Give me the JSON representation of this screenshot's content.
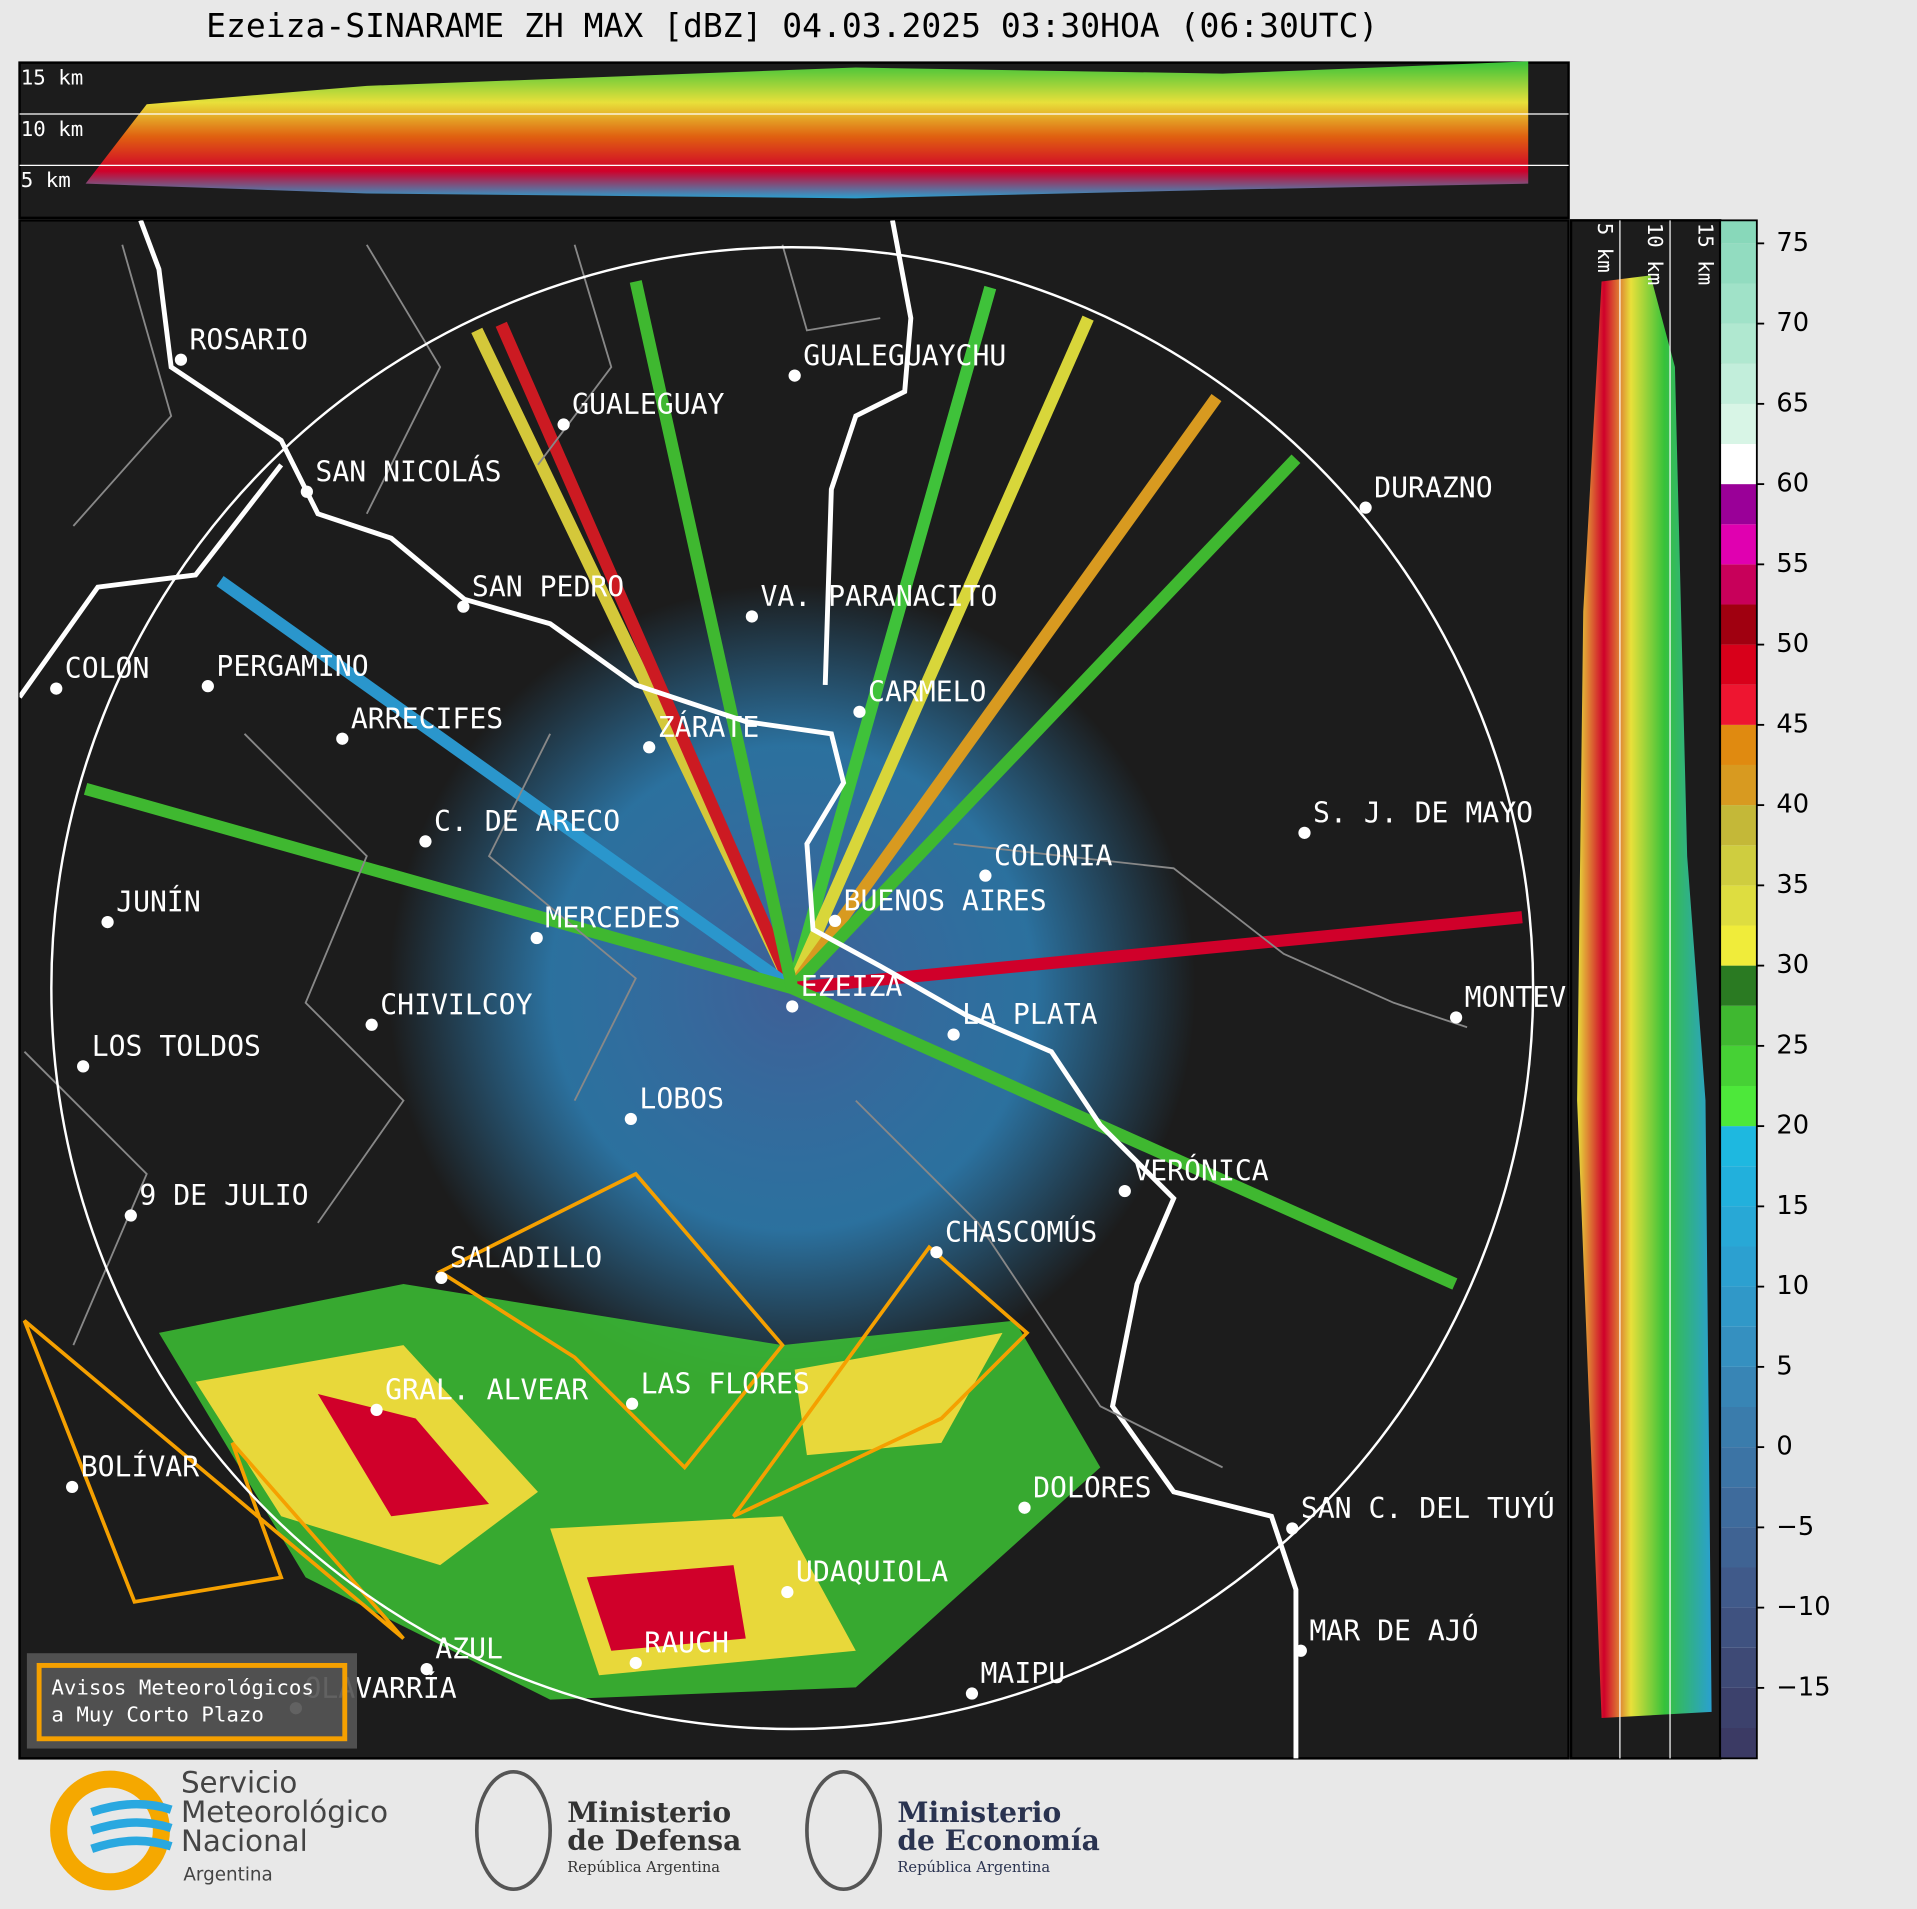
{
  "header": {
    "title": "Ezeiza-SINARAME ZH MAX [dBZ] 04.03.2025 03:30HOA (06:30UTC)"
  },
  "top_panel": {
    "labels": [
      "15 km",
      "10 km",
      "5 km"
    ]
  },
  "side_panel": {
    "labels": [
      "5 km",
      "10 km",
      "15 km"
    ]
  },
  "cities": [
    "ROSARIO",
    "GUALEGUAYCHU",
    "GUALEGUAY",
    "SAN NICOLÁS",
    "DURAZNO",
    "SAN PEDRO",
    "VA. PARANACITO",
    "COLON",
    "PERGAMINO",
    "CARMELO",
    "ARRECIFES",
    "ZÁRATE",
    "C. DE ARECO",
    "S. J. DE MAYO",
    "COLONIA",
    "JUNÍN",
    "BUENOS AIRES",
    "MERCEDES",
    "EZEIZA",
    "MONTEVIDEO",
    "CHIVILCOY",
    "LA PLATA",
    "LOS TOLDOS",
    "LOBOS",
    "VERÓNICA",
    "9 DE JULIO",
    "CHASCOMÚS",
    "SALADILLO",
    "GRAL. ALVEAR",
    "LAS FLORES",
    "BOLÍVAR",
    "DOLORES",
    "SAN C. DEL TUYÚ",
    "UDAQUIOLA",
    "MAR DE AJÓ",
    "AZUL",
    "RAUCH",
    "OLAVARRÍA",
    "MAIPU"
  ],
  "legend": {
    "lines": [
      "Avisos Meteorológicos",
      "a Muy Corto Plazo"
    ]
  },
  "colorbar": {
    "vlim": [
      -20,
      77.5
    ],
    "ticks": [
      {
        "value": -15,
        "label": "−15"
      },
      {
        "value": -10,
        "label": "−10"
      },
      {
        "value": -5,
        "label": "−5"
      },
      0,
      5,
      10,
      15,
      20,
      25,
      30,
      35,
      40,
      45,
      50,
      55,
      60,
      65,
      70,
      75
    ],
    "colors": [
      "#3b3a64",
      "#3c416c",
      "#3e4a76",
      "#3f5280",
      "#405a8a",
      "#3f6393",
      "#3e6b9c",
      "#3c74a5",
      "#3a7cac",
      "#3885b5",
      "#3590c0",
      "#3098c8",
      "#2ca0d0",
      "#28a8d6",
      "#22b0dc",
      "#1eb8e0",
      "#4de83a",
      "#46d135",
      "#3fb830",
      "#2a7a22",
      "#f0ec3a",
      "#dedd40",
      "#cfcd3f",
      "#c4b838",
      "#d89a20",
      "#e08a10",
      "#ee1530",
      "#d8001a",
      "#a00010",
      "#c8005a",
      "#e000b0",
      "#9a0098",
      "#ffffff",
      "#d8f5e6",
      "#c2eedb",
      "#b0e8d0",
      "#a0e2c8",
      "#92dcc0",
      "#88d8ba"
    ]
  },
  "logos": {
    "smn": [
      "Servicio",
      "Meteorológico",
      "Nacional",
      "Argentina"
    ],
    "defensa": [
      "Ministerio",
      "de Defensa",
      "República Argentina"
    ],
    "economia": [
      "Ministerio",
      "de Economía",
      "República Argentina"
    ]
  }
}
